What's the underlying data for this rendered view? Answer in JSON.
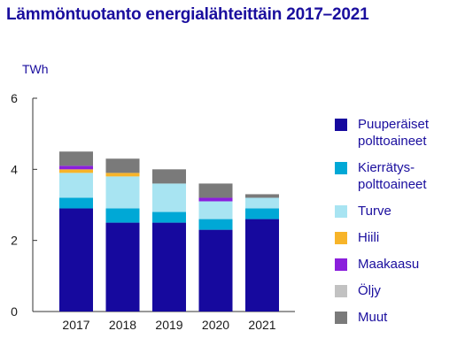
{
  "chart_data": {
    "type": "stacked-bar",
    "title": "Lämmöntuotanto energialähteittäin 2017–2021",
    "ylabel": "TWh",
    "ylim": [
      0,
      6
    ],
    "yticks": [
      "0",
      "2",
      "4",
      "6"
    ],
    "categories": [
      "2017",
      "2018",
      "2019",
      "2020",
      "2021"
    ],
    "series": [
      {
        "name": "Puuperäiset\npolttoaineet",
        "color": "#16099e",
        "values": [
          2.9,
          2.5,
          2.5,
          2.3,
          2.6
        ]
      },
      {
        "name": "Kierrätys-\npolttoaineet",
        "color": "#00a8d6",
        "values": [
          0.3,
          0.4,
          0.3,
          0.3,
          0.3
        ]
      },
      {
        "name": "Turve",
        "color": "#a8e4f2",
        "values": [
          0.7,
          0.9,
          0.8,
          0.5,
          0.3
        ]
      },
      {
        "name": "Hiili",
        "color": "#f7b429",
        "values": [
          0.1,
          0.1,
          0.0,
          0.0,
          0.0
        ]
      },
      {
        "name": "Maakaasu",
        "color": "#8a1fdc",
        "values": [
          0.1,
          0.0,
          0.0,
          0.1,
          0.0
        ]
      },
      {
        "name": "Öljy",
        "color": "#c2c2c2",
        "values": [
          0.0,
          0.0,
          0.0,
          0.0,
          0.0
        ]
      },
      {
        "name": "Muut",
        "color": "#7a7a7a",
        "values": [
          0.4,
          0.4,
          0.4,
          0.4,
          0.1
        ]
      }
    ],
    "legend_position": "right",
    "grid": false
  }
}
